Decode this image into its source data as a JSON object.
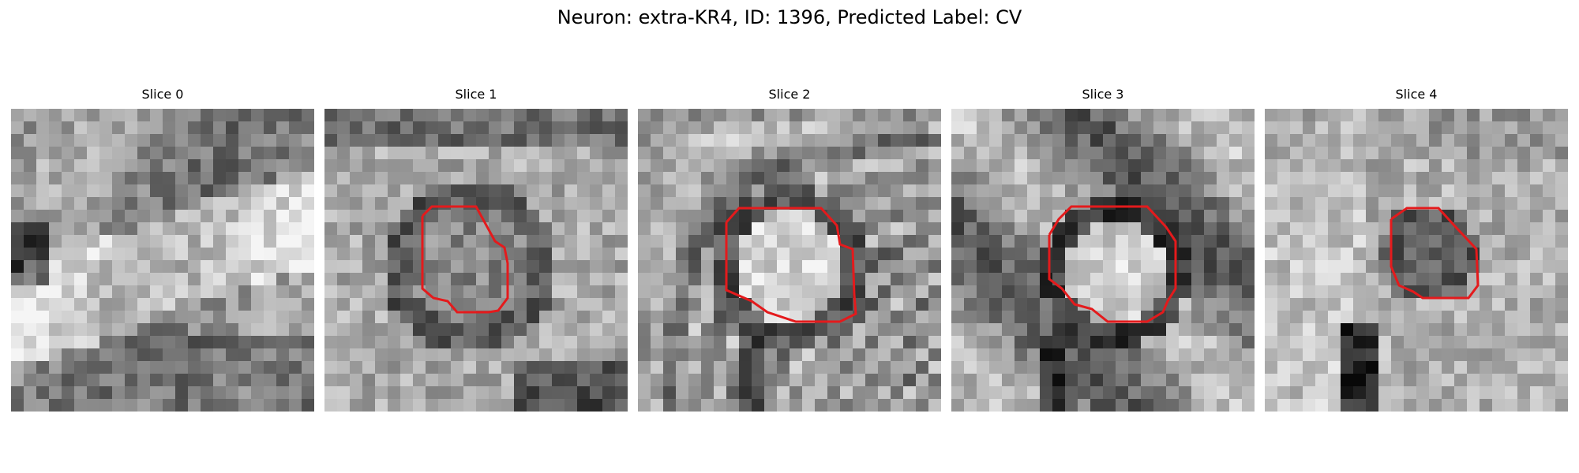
{
  "figure_title": "Neuron: extra-KR4, ID: 1396, Predicted Label: CV",
  "outline_color": "#e41a1c",
  "panels": [
    {
      "title": "Slice 0",
      "has_outline": false
    },
    {
      "title": "Slice 1",
      "has_outline": true
    },
    {
      "title": "Slice 2",
      "has_outline": true
    },
    {
      "title": "Slice 3",
      "has_outline": true
    },
    {
      "title": "Slice 4",
      "has_outline": true
    }
  ]
}
